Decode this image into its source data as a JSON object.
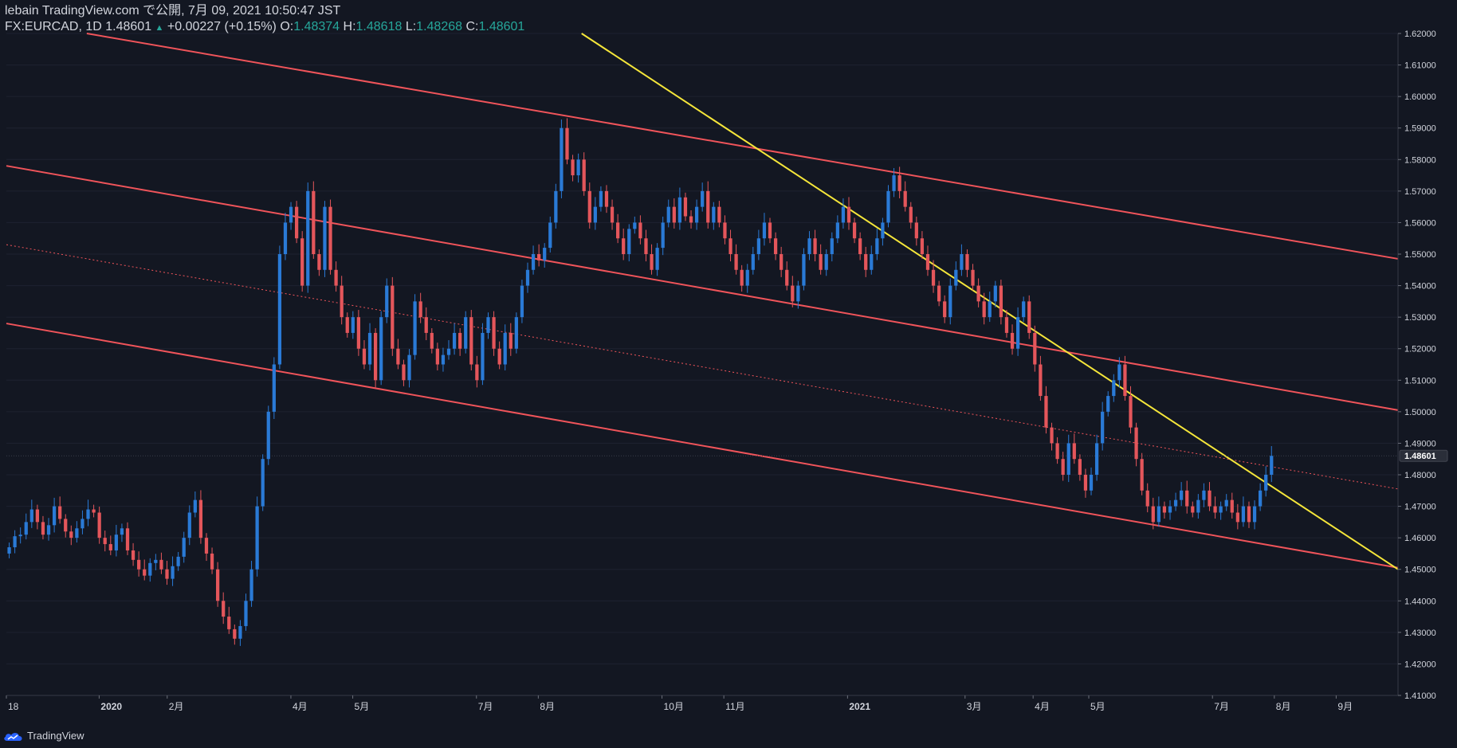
{
  "header": {
    "line1": "lebain TradingView.com で公開, 7月 09, 2021 10:50:47 JST",
    "symbol": "FX:EURCAD, 1D",
    "last": "1.48601",
    "change": "+0.00227 (+0.15%)",
    "o_label": "O:",
    "o_value": "1.48374",
    "h_label": "H:",
    "h_value": "1.48618",
    "l_label": "L:",
    "l_value": "1.48268",
    "c_label": "C:",
    "c_value": "1.48601"
  },
  "footer": {
    "brand": "TradingView"
  },
  "colors": {
    "background": "#131722",
    "up": "#2a7ad6",
    "down": "#e4565b",
    "channel": "#f0545a",
    "trendline": "#f5e63a",
    "grid": "#1e2230",
    "axis_text": "#d1d4dc"
  },
  "chart_data": {
    "type": "candlestick",
    "symbol": "FX:EURCAD",
    "interval": "1D",
    "ylim": [
      1.41,
      1.62
    ],
    "y_ticks": [
      "1.41000",
      "1.42000",
      "1.43000",
      "1.44000",
      "1.45000",
      "1.46000",
      "1.47000",
      "1.48000",
      "1.49000",
      "1.50000",
      "1.51000",
      "1.52000",
      "1.53000",
      "1.54000",
      "1.55000",
      "1.56000",
      "1.57000",
      "1.58000",
      "1.59000",
      "1.60000",
      "1.61000",
      "1.62000"
    ],
    "x_ticks": [
      {
        "label": "18",
        "t": 0
      },
      {
        "label": "2020",
        "t": 15
      },
      {
        "label": "2月",
        "t": 26
      },
      {
        "label": "4月",
        "t": 46
      },
      {
        "label": "5月",
        "t": 56
      },
      {
        "label": "7月",
        "t": 76
      },
      {
        "label": "8月",
        "t": 86
      },
      {
        "label": "10月",
        "t": 106
      },
      {
        "label": "11月",
        "t": 116
      },
      {
        "label": "2021",
        "t": 136
      },
      {
        "label": "3月",
        "t": 155
      },
      {
        "label": "4月",
        "t": 166
      },
      {
        "label": "5月",
        "t": 175
      },
      {
        "label": "7月",
        "t": 195
      },
      {
        "label": "8月",
        "t": 205
      },
      {
        "label": "9月",
        "t": 215
      }
    ],
    "last_price_label": "1.48601",
    "last_price": 1.48601,
    "closes": [
      1.457,
      1.4605,
      1.461,
      1.465,
      1.469,
      1.465,
      1.461,
      1.464,
      1.47,
      1.466,
      1.462,
      1.46,
      1.463,
      1.466,
      1.469,
      1.468,
      1.46,
      1.458,
      1.456,
      1.461,
      1.463,
      1.456,
      1.453,
      1.45,
      1.448,
      1.452,
      1.453,
      1.45,
      1.447,
      1.451,
      1.454,
      1.46,
      1.468,
      1.472,
      1.46,
      1.455,
      1.45,
      1.44,
      1.435,
      1.431,
      1.428,
      1.432,
      1.44,
      1.45,
      1.47,
      1.485,
      1.5,
      1.515,
      1.55,
      1.56,
      1.565,
      1.555,
      1.54,
      1.57,
      1.55,
      1.545,
      1.565,
      1.545,
      1.54,
      1.53,
      1.525,
      1.53,
      1.52,
      1.515,
      1.525,
      1.51,
      1.53,
      1.54,
      1.52,
      1.515,
      1.51,
      1.518,
      1.535,
      1.53,
      1.525,
      1.52,
      1.515,
      1.518,
      1.52,
      1.525,
      1.52,
      1.53,
      1.515,
      1.51,
      1.525,
      1.53,
      1.52,
      1.515,
      1.525,
      1.52,
      1.53,
      1.54,
      1.545,
      1.55,
      1.548,
      1.552,
      1.56,
      1.57,
      1.59,
      1.58,
      1.575,
      1.58,
      1.57,
      1.56,
      1.565,
      1.57,
      1.565,
      1.56,
      1.555,
      1.55,
      1.558,
      1.56,
      1.555,
      1.55,
      1.545,
      1.552,
      1.56,
      1.565,
      1.56,
      1.568,
      1.562,
      1.56,
      1.565,
      1.57,
      1.56,
      1.565,
      1.56,
      1.555,
      1.55,
      1.545,
      1.54,
      1.545,
      1.55,
      1.555,
      1.56,
      1.555,
      1.55,
      1.545,
      1.54,
      1.535,
      1.54,
      1.55,
      1.555,
      1.55,
      1.545,
      1.55,
      1.555,
      1.56,
      1.565,
      1.56,
      1.555,
      1.55,
      1.545,
      1.55,
      1.555,
      1.56,
      1.57,
      1.575,
      1.57,
      1.565,
      1.56,
      1.555,
      1.55,
      1.545,
      1.54,
      1.535,
      1.53,
      1.54,
      1.545,
      1.55,
      1.545,
      1.54,
      1.535,
      1.53,
      1.535,
      1.54,
      1.53,
      1.525,
      1.52,
      1.53,
      1.535,
      1.525,
      1.515,
      1.505,
      1.495,
      1.49,
      1.485,
      1.48,
      1.49,
      1.485,
      1.48,
      1.475,
      1.48,
      1.49,
      1.5,
      1.505,
      1.51,
      1.515,
      1.505,
      1.495,
      1.485,
      1.475,
      1.47,
      1.465,
      1.47,
      1.468,
      1.47,
      1.472,
      1.475,
      1.47,
      1.468,
      1.472,
      1.475,
      1.47,
      1.468,
      1.47,
      1.472,
      1.468,
      1.465,
      1.47,
      1.465,
      1.47,
      1.475,
      1.48,
      1.486
    ]
  }
}
